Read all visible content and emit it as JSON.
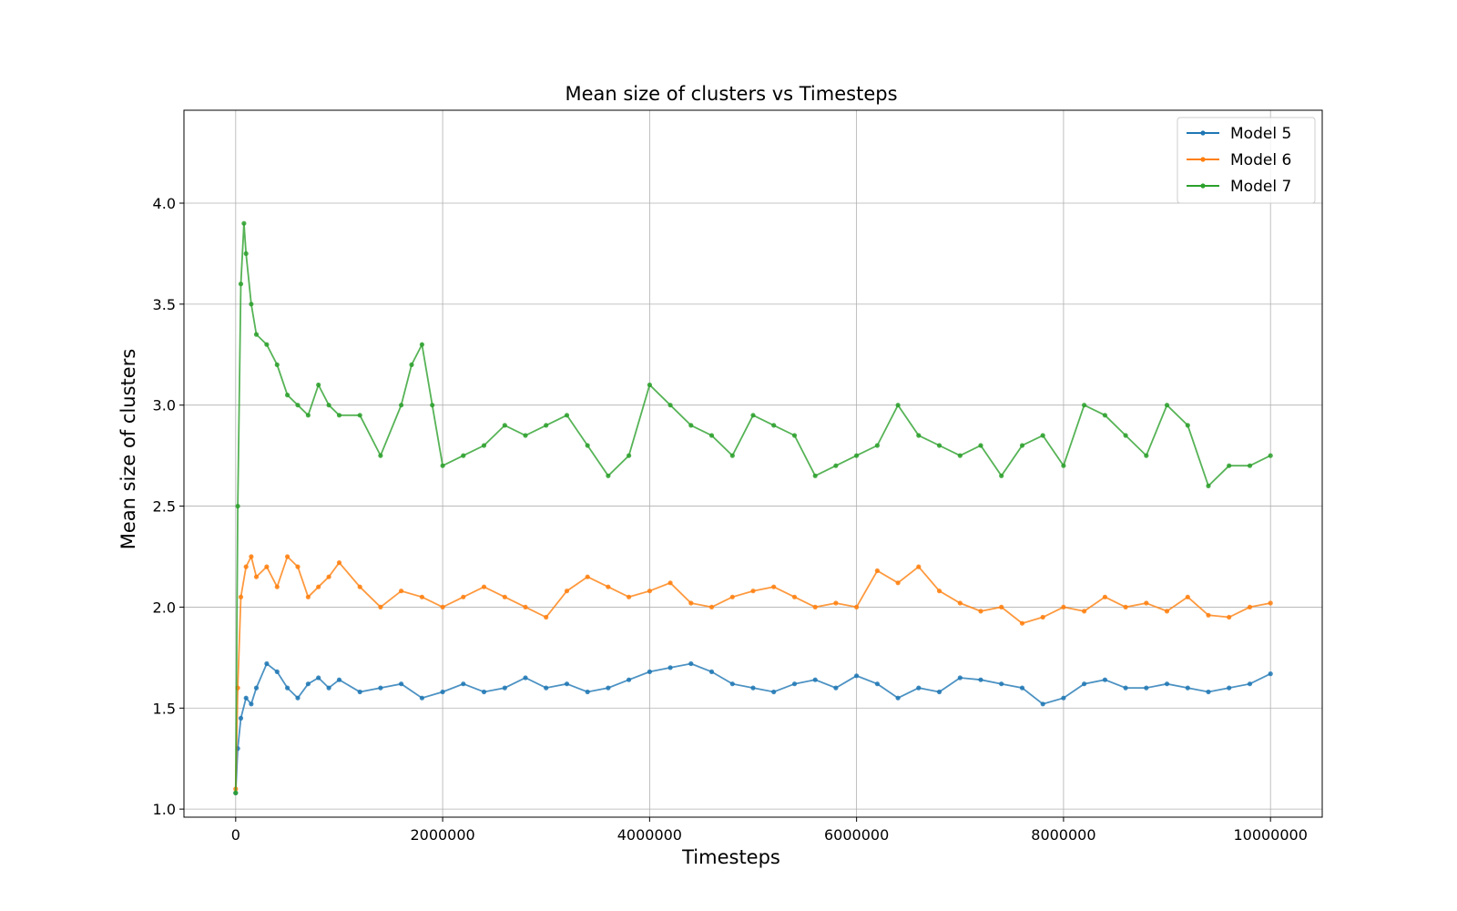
{
  "chart_data": {
    "type": "line",
    "title": "Mean size of clusters vs Timesteps",
    "xlabel": "Timesteps",
    "ylabel": "Mean size of clusters",
    "xlim": [
      -500000,
      10500000
    ],
    "ylim": [
      0.96,
      4.46
    ],
    "xticks": [
      0,
      2000000,
      4000000,
      6000000,
      8000000,
      10000000
    ],
    "xtick_labels": [
      "0",
      "2000000",
      "4000000",
      "6000000",
      "8000000",
      "10000000"
    ],
    "yticks": [
      1.0,
      1.5,
      2.0,
      2.5,
      3.0,
      3.5,
      4.0
    ],
    "ytick_labels": [
      "1.0",
      "1.5",
      "2.0",
      "2.5",
      "3.0",
      "3.5",
      "4.0"
    ],
    "grid": true,
    "legend_position": "top-right",
    "series": [
      {
        "name": "Model 5",
        "color": "#1f77b4",
        "x": [
          0,
          20000,
          50000,
          100000,
          150000,
          200000,
          300000,
          400000,
          500000,
          600000,
          700000,
          800000,
          900000,
          1000000,
          1200000,
          1400000,
          1600000,
          1800000,
          2000000,
          2200000,
          2400000,
          2600000,
          2800000,
          3000000,
          3200000,
          3400000,
          3600000,
          3800000,
          4000000,
          4200000,
          4400000,
          4600000,
          4800000,
          5000000,
          5200000,
          5400000,
          5600000,
          5800000,
          6000000,
          6200000,
          6400000,
          6600000,
          6800000,
          7000000,
          7200000,
          7400000,
          7600000,
          7800000,
          8000000,
          8200000,
          8400000,
          8600000,
          8800000,
          9000000,
          9200000,
          9400000,
          9600000,
          9800000,
          10000000
        ],
        "y": [
          1.08,
          1.3,
          1.45,
          1.55,
          1.52,
          1.6,
          1.72,
          1.68,
          1.6,
          1.55,
          1.62,
          1.65,
          1.6,
          1.64,
          1.58,
          1.6,
          1.62,
          1.55,
          1.58,
          1.62,
          1.58,
          1.6,
          1.65,
          1.6,
          1.62,
          1.58,
          1.6,
          1.64,
          1.68,
          1.7,
          1.72,
          1.68,
          1.62,
          1.6,
          1.58,
          1.62,
          1.64,
          1.6,
          1.66,
          1.62,
          1.55,
          1.6,
          1.58,
          1.65,
          1.64,
          1.62,
          1.6,
          1.52,
          1.55,
          1.62,
          1.64,
          1.6,
          1.6,
          1.62,
          1.6,
          1.58,
          1.6,
          1.62,
          1.67
        ]
      },
      {
        "name": "Model 6",
        "color": "#ff7f0e",
        "x": [
          0,
          20000,
          50000,
          100000,
          150000,
          200000,
          300000,
          400000,
          500000,
          600000,
          700000,
          800000,
          900000,
          1000000,
          1200000,
          1400000,
          1600000,
          1800000,
          2000000,
          2200000,
          2400000,
          2600000,
          2800000,
          3000000,
          3200000,
          3400000,
          3600000,
          3800000,
          4000000,
          4200000,
          4400000,
          4600000,
          4800000,
          5000000,
          5200000,
          5400000,
          5600000,
          5800000,
          6000000,
          6200000,
          6400000,
          6600000,
          6800000,
          7000000,
          7200000,
          7400000,
          7600000,
          7800000,
          8000000,
          8200000,
          8400000,
          8600000,
          8800000,
          9000000,
          9200000,
          9400000,
          9600000,
          9800000,
          10000000
        ],
        "y": [
          1.1,
          1.6,
          2.05,
          2.2,
          2.25,
          2.15,
          2.2,
          2.1,
          2.25,
          2.2,
          2.05,
          2.1,
          2.15,
          2.22,
          2.1,
          2.0,
          2.08,
          2.05,
          2.0,
          2.05,
          2.1,
          2.05,
          2.0,
          1.95,
          2.08,
          2.15,
          2.1,
          2.05,
          2.08,
          2.12,
          2.02,
          2.0,
          2.05,
          2.08,
          2.1,
          2.05,
          2.0,
          2.02,
          2.0,
          2.18,
          2.12,
          2.2,
          2.08,
          2.02,
          1.98,
          2.0,
          1.92,
          1.95,
          2.0,
          1.98,
          2.05,
          2.0,
          2.02,
          1.98,
          2.05,
          1.96,
          1.95,
          2.0,
          2.02
        ]
      },
      {
        "name": "Model 7",
        "color": "#2ca02c",
        "x": [
          0,
          20000,
          50000,
          80000,
          100000,
          150000,
          200000,
          300000,
          400000,
          500000,
          600000,
          700000,
          800000,
          900000,
          1000000,
          1200000,
          1400000,
          1600000,
          1700000,
          1800000,
          1900000,
          2000000,
          2200000,
          2400000,
          2600000,
          2800000,
          3000000,
          3200000,
          3400000,
          3600000,
          3800000,
          4000000,
          4200000,
          4400000,
          4600000,
          4800000,
          5000000,
          5200000,
          5400000,
          5600000,
          5800000,
          6000000,
          6200000,
          6400000,
          6600000,
          6800000,
          7000000,
          7200000,
          7400000,
          7600000,
          7800000,
          8000000,
          8200000,
          8400000,
          8600000,
          8800000,
          9000000,
          9200000,
          9400000,
          9600000,
          9800000,
          10000000
        ],
        "y": [
          1.08,
          2.5,
          3.6,
          3.9,
          3.75,
          3.5,
          3.35,
          3.3,
          3.2,
          3.05,
          3.0,
          2.95,
          3.1,
          3.0,
          2.95,
          2.95,
          2.75,
          3.0,
          3.2,
          3.3,
          3.0,
          2.7,
          2.75,
          2.8,
          2.9,
          2.85,
          2.9,
          2.95,
          2.8,
          2.65,
          2.75,
          3.1,
          3.0,
          2.9,
          2.85,
          2.75,
          2.95,
          2.9,
          2.85,
          2.65,
          2.7,
          2.75,
          2.8,
          3.0,
          2.85,
          2.8,
          2.75,
          2.8,
          2.65,
          2.8,
          2.85,
          2.7,
          3.0,
          2.95,
          2.85,
          2.75,
          3.0,
          2.9,
          2.6,
          2.7,
          2.7,
          2.75
        ]
      }
    ]
  }
}
